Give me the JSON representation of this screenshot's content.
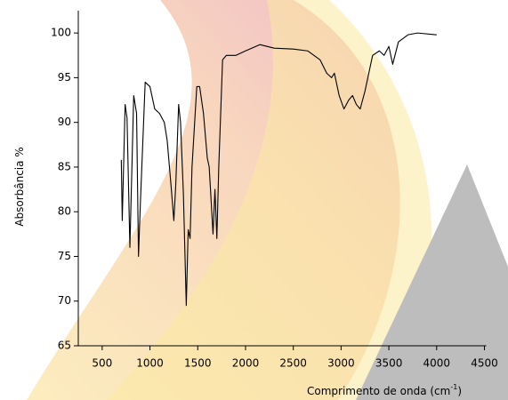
{
  "chart_data": {
    "type": "line",
    "xlabel": {
      "text": "Comprimento de onda (cm",
      "superscript": "-1",
      "suffix": ")"
    },
    "ylabel": "Absorbância %",
    "xlim": [
      250,
      4500
    ],
    "ylim": [
      65,
      102.5
    ],
    "xticks": [
      500,
      1000,
      1500,
      2000,
      2500,
      3000,
      3500,
      4000,
      4500
    ],
    "yticks": [
      65,
      70,
      75,
      80,
      85,
      90,
      95,
      100
    ],
    "series": [
      {
        "color": "#000000",
        "x": [
          700,
          710,
          740,
          760,
          790,
          830,
          860,
          880,
          900,
          950,
          1000,
          1050,
          1100,
          1150,
          1180,
          1220,
          1250,
          1270,
          1300,
          1320,
          1350,
          1380,
          1400,
          1420,
          1440,
          1490,
          1520,
          1560,
          1600,
          1620,
          1660,
          1680,
          1700,
          1720,
          1760,
          1800,
          1900,
          2000,
          2150,
          2300,
          2500,
          2650,
          2780,
          2850,
          2900,
          2930,
          2980,
          3030,
          3080,
          3120,
          3160,
          3200,
          3250,
          3330,
          3400,
          3450,
          3500,
          3540,
          3600,
          3700,
          3800,
          4000
        ],
        "values": [
          85.8,
          79,
          92,
          90.5,
          76,
          93,
          91,
          75,
          81,
          94.5,
          94,
          91.5,
          91,
          90,
          88,
          83,
          79,
          83,
          92,
          90,
          82,
          69.5,
          78,
          77,
          85,
          94,
          94,
          91,
          86,
          85,
          77.5,
          82.5,
          77,
          85,
          97,
          97.5,
          97.5,
          98,
          98.7,
          98.3,
          98.2,
          98,
          97,
          95.5,
          95,
          95.5,
          93,
          91.5,
          92.5,
          93,
          92,
          91.5,
          93.5,
          97.5,
          98,
          97.5,
          98.5,
          96.5,
          99,
          99.8,
          100,
          99.8
        ]
      }
    ]
  }
}
